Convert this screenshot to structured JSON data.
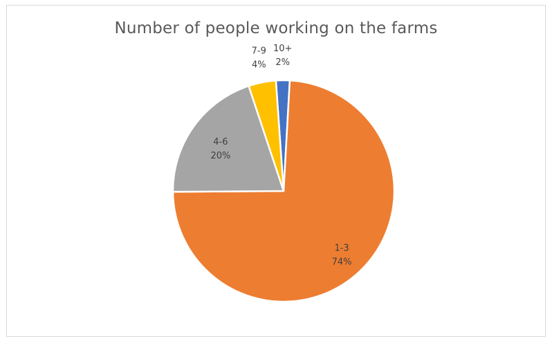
{
  "chart_data": {
    "type": "pie",
    "title": "Number of people working on the farms",
    "slices": [
      {
        "category": "10+",
        "percent_label": "2%",
        "value": 2,
        "color": "#4472C4"
      },
      {
        "category": "1-3",
        "percent_label": "74%",
        "value": 74,
        "color": "#ED7D31"
      },
      {
        "category": "4-6",
        "percent_label": "20%",
        "value": 20,
        "color": "#A5A5A5"
      },
      {
        "category": "7-9",
        "percent_label": "4%",
        "value": 4,
        "color": "#FFC000"
      }
    ],
    "legend": "none",
    "label_style": "category and percentage"
  }
}
